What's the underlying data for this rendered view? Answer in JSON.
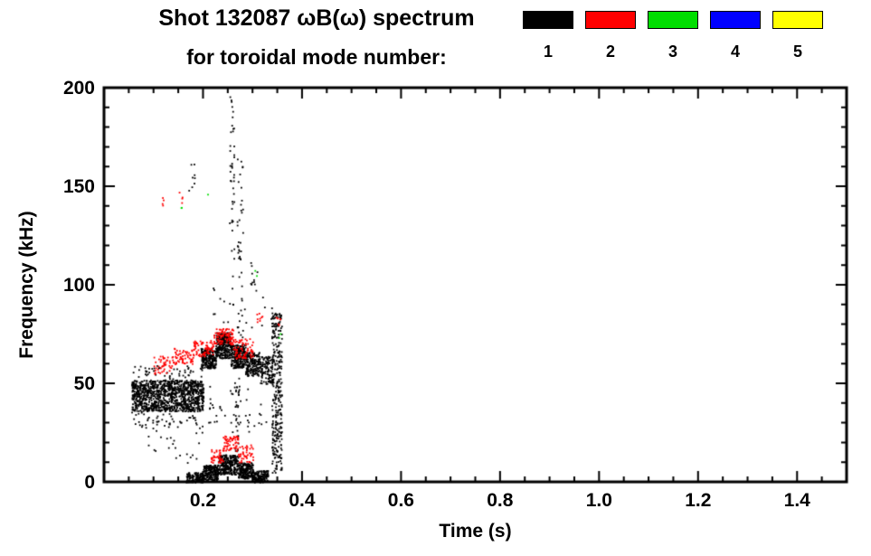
{
  "header": {
    "title": "Shot 132087 ωB(ω) spectrum",
    "subtitle": "for toroidal mode number:"
  },
  "chart_data": {
    "type": "scatter",
    "title": "Shot 132087 ωB(ω) spectrum",
    "subtitle": "for toroidal mode number:",
    "xlabel": "Time (s)",
    "ylabel": "Frequency (kHz)",
    "xlim": [
      0.0,
      1.5
    ],
    "ylim": [
      0,
      200
    ],
    "x_ticks": [
      0.2,
      0.4,
      0.6,
      0.8,
      1.0,
      1.2,
      1.4
    ],
    "x_tick_labels": [
      "0.2",
      "0.4",
      "0.6",
      "0.8",
      "1.0",
      "1.2",
      "1.4"
    ],
    "x_minor_step": 0.05,
    "y_ticks": [
      0,
      50,
      100,
      150,
      200
    ],
    "y_tick_labels": [
      "0",
      "50",
      "100",
      "150",
      "200"
    ],
    "y_minor_step": 10,
    "grid": false,
    "background": "#ffffff",
    "frame_color": "#000000",
    "legend_position": "top-right",
    "legend": [
      {
        "label": "1",
        "color": "#000000"
      },
      {
        "label": "2",
        "color": "#ff0000"
      },
      {
        "label": "3",
        "color": "#00dd00"
      },
      {
        "label": "4",
        "color": "#0000ff"
      },
      {
        "label": "5",
        "color": "#ffff00"
      }
    ],
    "series": [
      {
        "name": "toroidal mode n=1",
        "color": "#000000",
        "clusters": [
          {
            "t": [
              0.055,
              0.2
            ],
            "f": [
              36,
              52
            ],
            "n": 1100
          },
          {
            "t": [
              0.055,
              0.2
            ],
            "f": [
              28,
              36
            ],
            "n": 50
          },
          {
            "t": [
              0.055,
              0.2
            ],
            "f": [
              52,
              60
            ],
            "n": 50
          },
          {
            "t": [
              0.08,
              0.2
            ],
            "f": [
              10,
              28
            ],
            "n": 25
          },
          {
            "t": [
              0.195,
              0.225
            ],
            "f": [
              58,
              68
            ],
            "n": 220
          },
          {
            "t": [
              0.225,
              0.255
            ],
            "f": [
              63,
              76
            ],
            "n": 260
          },
          {
            "t": [
              0.255,
              0.285
            ],
            "f": [
              58,
              70
            ],
            "n": 240
          },
          {
            "t": [
              0.285,
              0.315
            ],
            "f": [
              54,
              66
            ],
            "n": 180
          },
          {
            "t": [
              0.315,
              0.34
            ],
            "f": [
              50,
              64
            ],
            "n": 120
          },
          {
            "t": [
              0.165,
              0.2
            ],
            "f": [
              0,
              5
            ],
            "n": 140
          },
          {
            "t": [
              0.2,
              0.23
            ],
            "f": [
              1,
              9
            ],
            "n": 200
          },
          {
            "t": [
              0.23,
              0.27
            ],
            "f": [
              4,
              14
            ],
            "n": 260
          },
          {
            "t": [
              0.27,
              0.3
            ],
            "f": [
              2,
              10
            ],
            "n": 200
          },
          {
            "t": [
              0.3,
              0.33
            ],
            "f": [
              0,
              6
            ],
            "n": 140
          },
          {
            "t": [
              0.338,
              0.358
            ],
            "f": [
              5,
              86
            ],
            "n": 320
          },
          {
            "t": [
              0.252,
              0.262
            ],
            "f": [
              85,
              198
            ],
            "n": 45
          },
          {
            "t": [
              0.268,
              0.28
            ],
            "f": [
              60,
              165
            ],
            "n": 45
          },
          {
            "t": [
              0.262,
              0.272
            ],
            "f": [
              15,
              60
            ],
            "n": 30
          },
          {
            "t": [
              0.17,
              0.182
            ],
            "f": [
              148,
              162
            ],
            "n": 8
          },
          {
            "t": [
              0.295,
              0.31
            ],
            "f": [
              100,
              112
            ],
            "n": 10
          },
          {
            "t": [
              0.2,
              0.34
            ],
            "f": [
              78,
              100
            ],
            "n": 20
          },
          {
            "t": [
              0.21,
              0.33
            ],
            "f": [
              25,
              50
            ],
            "n": 45
          }
        ]
      },
      {
        "name": "toroidal mode n=2",
        "color": "#ff0000",
        "clusters": [
          {
            "t": [
              0.1,
              0.14
            ],
            "f": [
              55,
              64
            ],
            "n": 50
          },
          {
            "t": [
              0.14,
              0.18
            ],
            "f": [
              60,
              68
            ],
            "n": 60
          },
          {
            "t": [
              0.18,
              0.22
            ],
            "f": [
              64,
              72
            ],
            "n": 70
          },
          {
            "t": [
              0.22,
              0.26
            ],
            "f": [
              70,
              78
            ],
            "n": 90
          },
          {
            "t": [
              0.26,
              0.3
            ],
            "f": [
              63,
              73
            ],
            "n": 70
          },
          {
            "t": [
              0.215,
              0.24
            ],
            "f": [
              10,
              17
            ],
            "n": 40
          },
          {
            "t": [
              0.24,
              0.27
            ],
            "f": [
              16,
              24
            ],
            "n": 60
          },
          {
            "t": [
              0.27,
              0.3
            ],
            "f": [
              10,
              19
            ],
            "n": 45
          },
          {
            "t": [
              0.148,
              0.158
            ],
            "f": [
              140,
              148
            ],
            "n": 4
          },
          {
            "t": [
              0.115,
              0.128
            ],
            "f": [
              138,
              146
            ],
            "n": 4
          },
          {
            "t": [
              0.305,
              0.325
            ],
            "f": [
              80,
              86
            ],
            "n": 8
          },
          {
            "t": [
              0.346,
              0.358
            ],
            "f": [
              78,
              85
            ],
            "n": 6
          }
        ]
      },
      {
        "name": "toroidal mode n=3",
        "color": "#00dd00",
        "clusters": [
          {
            "t": [
              0.148,
              0.156
            ],
            "f": [
              139,
              143
            ],
            "n": 2
          },
          {
            "t": [
              0.208,
              0.215
            ],
            "f": [
              145,
              150
            ],
            "n": 1
          },
          {
            "t": [
              0.3,
              0.308
            ],
            "f": [
              103,
              108
            ],
            "n": 2
          },
          {
            "t": [
              0.352,
              0.358
            ],
            "f": [
              73,
              77
            ],
            "n": 2
          }
        ]
      },
      {
        "name": "toroidal mode n=4",
        "color": "#0000ff",
        "clusters": []
      },
      {
        "name": "toroidal mode n=5",
        "color": "#ffff00",
        "clusters": []
      }
    ]
  }
}
